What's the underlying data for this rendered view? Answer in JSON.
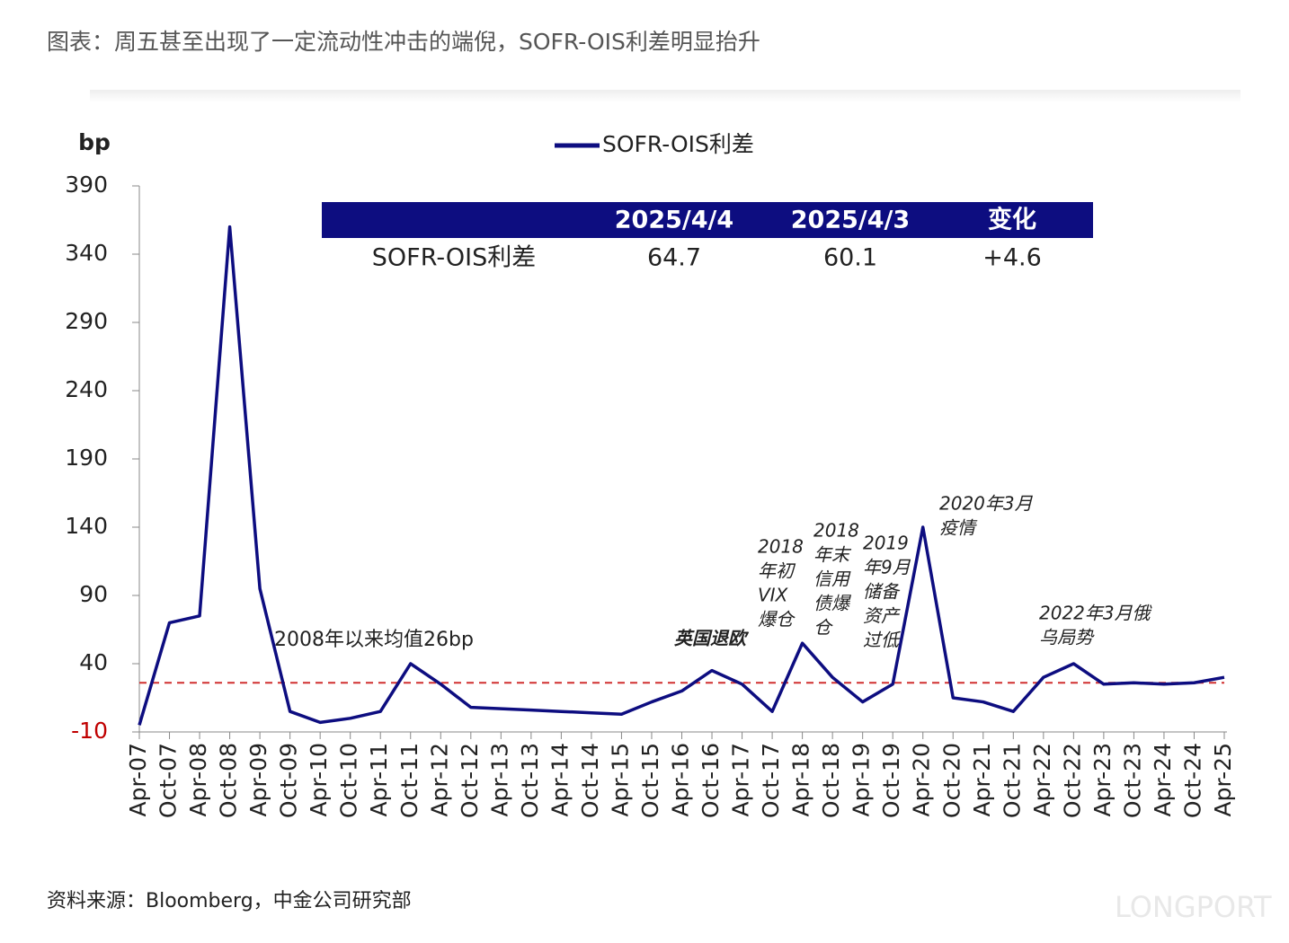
{
  "header": {
    "title": "图表：周五甚至出现了一定流动性冲击的端倪，SOFR-OIS利差明显抬升"
  },
  "chart_data": {
    "type": "line",
    "y_label": "bp",
    "categories": [
      "Apr-07",
      "Oct-07",
      "Apr-08",
      "Oct-08",
      "Apr-09",
      "Oct-09",
      "Apr-10",
      "Oct-10",
      "Apr-11",
      "Oct-11",
      "Apr-12",
      "Oct-12",
      "Apr-13",
      "Oct-13",
      "Apr-14",
      "Oct-14",
      "Apr-15",
      "Oct-15",
      "Apr-16",
      "Oct-16",
      "Apr-17",
      "Oct-17",
      "Apr-18",
      "Oct-18",
      "Apr-19",
      "Oct-19",
      "Apr-20",
      "Oct-20",
      "Apr-21",
      "Oct-21",
      "Apr-22",
      "Oct-22",
      "Apr-23",
      "Oct-23",
      "Apr-24",
      "Oct-24",
      "Apr-25"
    ],
    "series": [
      {
        "name": "SOFR-OIS利差",
        "color": "#0d0d80",
        "values": [
          -5,
          70,
          75,
          360,
          95,
          5,
          -3,
          0,
          5,
          40,
          25,
          8,
          7,
          6,
          5,
          4,
          3,
          12,
          20,
          35,
          25,
          5,
          55,
          30,
          12,
          25,
          140,
          15,
          12,
          5,
          30,
          40,
          25,
          26,
          25,
          26,
          30
        ]
      }
    ],
    "ylim": [
      -10,
      390
    ],
    "yticks": [
      -10,
      40,
      90,
      140,
      190,
      240,
      290,
      340,
      390
    ],
    "reference_line": {
      "value": 26,
      "label": "2008年以来均值26bp",
      "color": "#d03030"
    },
    "annotations": [
      {
        "lines": [
          "英国退欧"
        ]
      },
      {
        "lines": [
          "2018",
          "年初",
          "VIX",
          "爆仓"
        ]
      },
      {
        "lines": [
          "2018",
          "年末",
          "信用",
          "债爆",
          "仓"
        ]
      },
      {
        "lines": [
          "2019",
          "年9月",
          "储备",
          "资产",
          "过低"
        ]
      },
      {
        "lines": [
          "2020年3月",
          "疫情"
        ]
      },
      {
        "lines": [
          "2022年3月俄",
          "乌局势"
        ]
      }
    ],
    "inset_table": {
      "header": [
        "2025/4/4",
        "2025/4/3",
        "变化"
      ],
      "row_label": "SOFR-OIS利差",
      "cells": [
        "64.7",
        "60.1",
        "+4.6"
      ]
    }
  },
  "footer": {
    "source": "资料来源：Bloomberg，中金公司研究部",
    "watermark": "LONGPORT"
  }
}
